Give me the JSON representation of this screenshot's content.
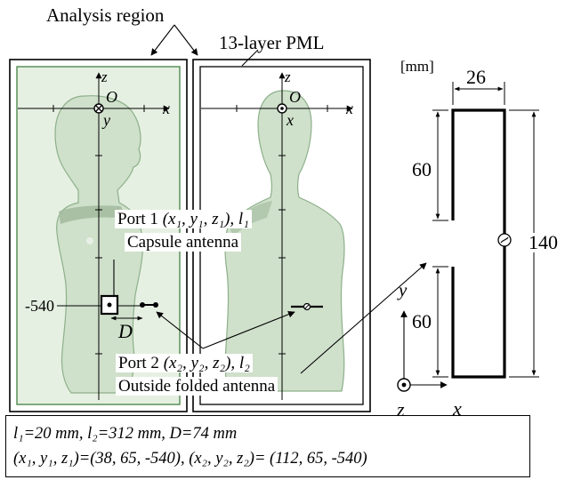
{
  "title_analysis_region": "Analysis region",
  "title_pml": "13-layer PML",
  "left_axes": {
    "z": "z",
    "x": "x",
    "y": "y",
    "origin": "O"
  },
  "right_axes": {
    "z": "z",
    "x": "x",
    "origin": "O"
  },
  "z_tick_label": "-540",
  "spacing_label": "D",
  "port1": {
    "label": "Port 1",
    "coords": "(x₁, y₁, z₁), l₁",
    "name": "Capsule antenna"
  },
  "port2": {
    "label": "Port 2",
    "coords": "(x₂, y₂, z₂), l₂",
    "name": "Outside folded antenna"
  },
  "antenna_dims": {
    "unit": "[mm]",
    "width": "26",
    "upper_segment": "60",
    "lower_segment": "60",
    "total_height": "140"
  },
  "antenna_axes": {
    "y": "y",
    "z": "z",
    "x": "x"
  },
  "caption": {
    "line1": "l₁=20 mm, l₂=312  mm, D=74 mm",
    "line2": "(x₁, y₁, z₁)=(38, 65, -540), (x₂, y₂, z₂)= (112, 65, -540)"
  },
  "colors": {
    "analysis_region_fill": "#e6f0e2",
    "phantom_fill": "#cfe0cb",
    "phantom_stroke": "#7aa07a"
  }
}
